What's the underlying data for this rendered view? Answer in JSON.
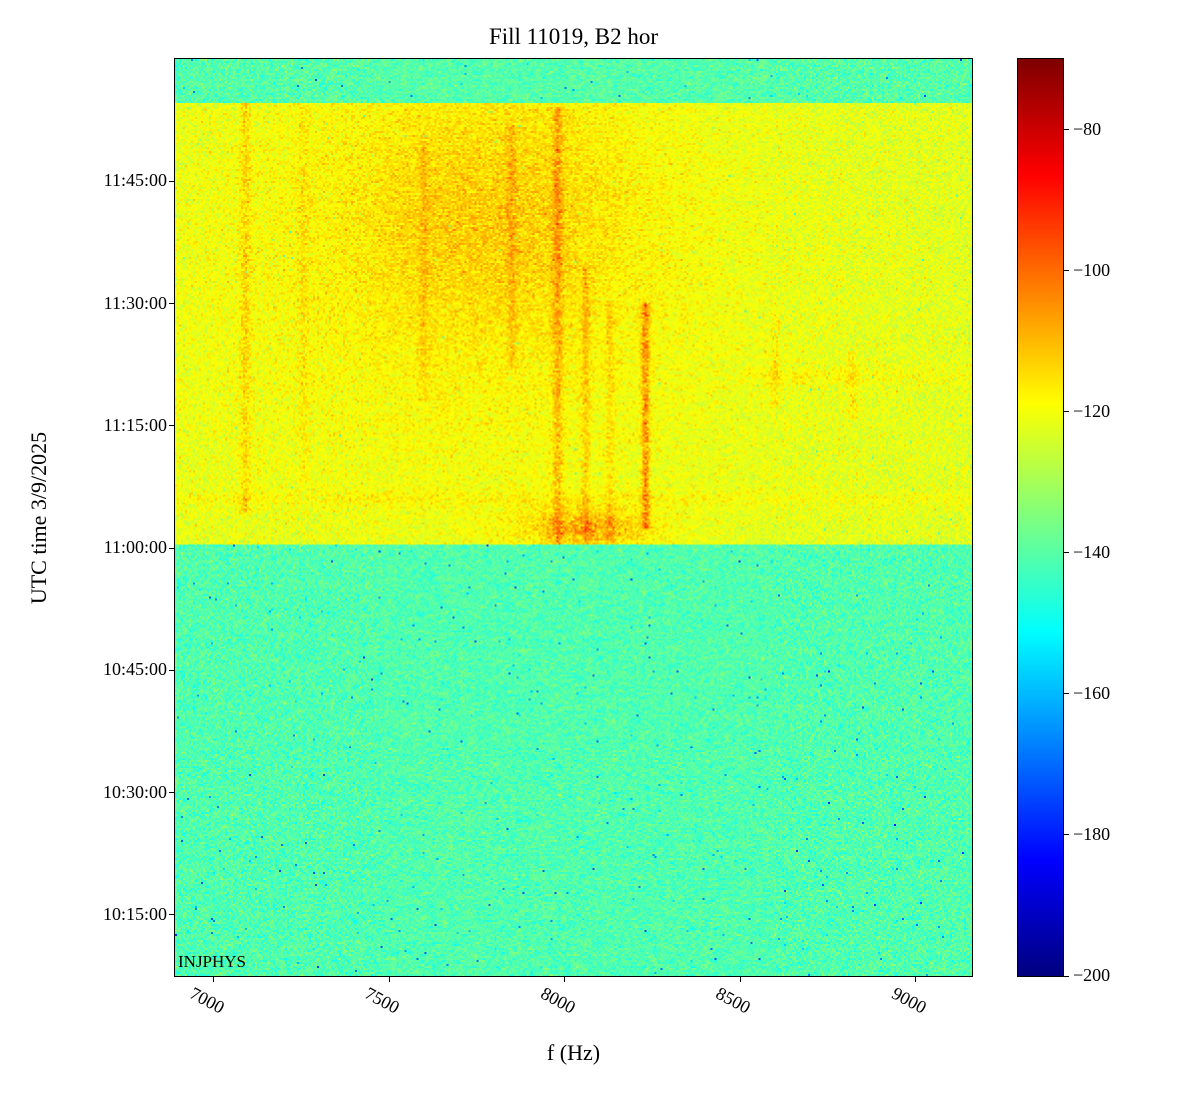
{
  "title": "Fill 11019, B2 hor",
  "annotation": "INJPHYS",
  "chart_data": {
    "type": "heatmap",
    "title": "Fill 11019, B2 hor",
    "xlabel": "f (Hz)",
    "ylabel": "UTC time 3/9/2025",
    "annotation": "INJPHYS",
    "x_range_hz": [
      6890,
      9160
    ],
    "time_range": [
      "10:07:30",
      "12:00:00"
    ],
    "x_ticks": [
      {
        "value": 7000,
        "label": "7000"
      },
      {
        "value": 7500,
        "label": "7500"
      },
      {
        "value": 8000,
        "label": "8000"
      },
      {
        "value": 8500,
        "label": "8500"
      },
      {
        "value": 9000,
        "label": "9000"
      }
    ],
    "y_ticks": [
      {
        "time": "10:15:00",
        "label": "10:15:00"
      },
      {
        "time": "10:30:00",
        "label": "10:30:00"
      },
      {
        "time": "10:45:00",
        "label": "10:45:00"
      },
      {
        "time": "11:00:00",
        "label": "11:00:00"
      },
      {
        "time": "11:15:00",
        "label": "11:15:00"
      },
      {
        "time": "11:30:00",
        "label": "11:30:00"
      },
      {
        "time": "11:45:00",
        "label": "11:45:00"
      }
    ],
    "colorbar": {
      "colormap": "jet",
      "vmin": -200,
      "vmax": -70,
      "ticks": [
        {
          "value": -80,
          "label": "−80"
        },
        {
          "value": -100,
          "label": "−100"
        },
        {
          "value": -120,
          "label": "−120"
        },
        {
          "value": -140,
          "label": "−140"
        },
        {
          "value": -160,
          "label": "−160"
        },
        {
          "value": -180,
          "label": "−180"
        },
        {
          "value": -200,
          "label": "−200"
        }
      ]
    },
    "segments": [
      {
        "start": "10:07:30",
        "end": "11:00:30",
        "mean_db": -141,
        "noise_db": 3.5,
        "speck_prob": 0.004,
        "speck_db": 18
      },
      {
        "start": "11:00:30",
        "end": "11:54:30",
        "mean_db": -122.5,
        "noise_db": 3.0,
        "speck_prob": 0.001,
        "speck_db": 12
      },
      {
        "start": "11:54:30",
        "end": "12:00:00",
        "mean_db": -140.5,
        "noise_db": 3.5,
        "speck_prob": 0.004,
        "speck_db": 18
      }
    ],
    "features": [
      {
        "kind": "blob",
        "f_hz": 7700,
        "sigma_hz": 600,
        "time": "11:33:00",
        "sigma_min": 22,
        "amp_db": 4.5
      },
      {
        "kind": "blob",
        "f_hz": 7800,
        "sigma_hz": 300,
        "time": "11:42:00",
        "sigma_min": 11,
        "amp_db": 6
      },
      {
        "kind": "vline",
        "f_hz": 7090,
        "sigma_hz": 11,
        "start": "11:04:00",
        "end": "11:54:30",
        "amp_db": 6
      },
      {
        "kind": "vline",
        "f_hz": 7255,
        "sigma_hz": 9,
        "start": "11:08:00",
        "end": "11:54:30",
        "amp_db": 3.5
      },
      {
        "kind": "vline",
        "f_hz": 7600,
        "sigma_hz": 9,
        "start": "11:18:00",
        "end": "11:50:00",
        "amp_db": 4
      },
      {
        "kind": "vline",
        "f_hz": 7850,
        "sigma_hz": 9,
        "start": "11:22:00",
        "end": "11:52:00",
        "amp_db": 5
      },
      {
        "kind": "vline",
        "f_hz": 7980,
        "sigma_hz": 10,
        "start": "11:00:30",
        "end": "11:54:00",
        "amp_db": 9
      },
      {
        "kind": "vline",
        "f_hz": 8060,
        "sigma_hz": 8,
        "start": "11:00:30",
        "end": "11:35:00",
        "amp_db": 7
      },
      {
        "kind": "vline",
        "f_hz": 8130,
        "sigma_hz": 8,
        "start": "11:00:30",
        "end": "11:30:00",
        "amp_db": 5
      },
      {
        "kind": "vline",
        "f_hz": 8230,
        "sigma_hz": 8,
        "start": "11:02:30",
        "end": "11:30:00",
        "amp_db": 15
      },
      {
        "kind": "vline",
        "f_hz": 8600,
        "sigma_hz": 9,
        "start": "11:17:00",
        "end": "11:29:00",
        "amp_db": 5
      },
      {
        "kind": "vline",
        "f_hz": 8820,
        "sigma_hz": 12,
        "start": "11:16:00",
        "end": "11:24:00",
        "amp_db": 4.5
      },
      {
        "kind": "blob",
        "f_hz": 8060,
        "sigma_hz": 130,
        "time": "11:02:30",
        "sigma_min": 1.6,
        "amp_db": 13
      },
      {
        "kind": "hline",
        "time": "11:21:00",
        "sigma_min": 0.8,
        "f_start": 8500,
        "f_end": 9160,
        "amp_db": 3
      },
      {
        "kind": "hline",
        "time": "11:06:00",
        "sigma_min": 0.7,
        "f_start": 6890,
        "f_end": 9160,
        "amp_db": 2.5
      }
    ]
  }
}
